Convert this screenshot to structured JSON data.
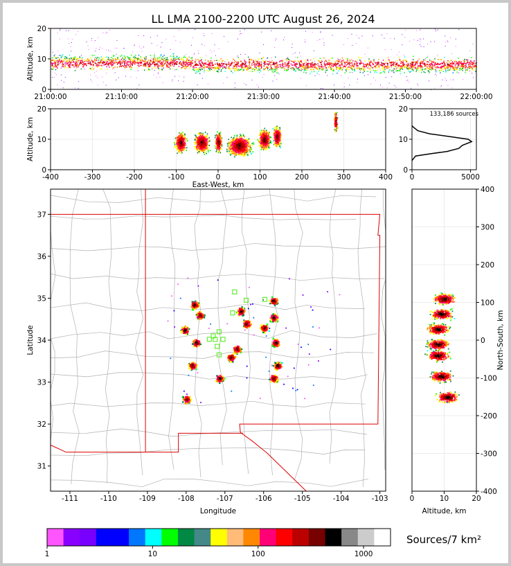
{
  "title": "LL LMA 2100-2200 UTC August 26, 2024",
  "source_count_label": "133,186 sources",
  "colorbar": {
    "label": "Sources/7 km²",
    "colors": [
      "#ff55ff",
      "#8800ff",
      "#7700ff",
      "#0000ff",
      "#0000ff",
      "#0077ff",
      "#00ffff",
      "#00ff00",
      "#008844",
      "#448888",
      "#ffff00",
      "#ffbb77",
      "#ff8800",
      "#ff0077",
      "#ff0000",
      "#bb0000",
      "#770000",
      "#000000",
      "#888888",
      "#cccccc",
      "#ffffff"
    ],
    "tick_labels": [
      "1",
      "10",
      "100",
      "1000"
    ],
    "tick_values": [
      1,
      10,
      100,
      1000
    ],
    "range": [
      1,
      1800
    ]
  },
  "chart_data": [
    {
      "id": "time_height",
      "type": "scatter",
      "xlabel": "",
      "ylabel": "Altitude, km",
      "x_tick_labels": [
        "21:00:00",
        "21:10:00",
        "21:20:00",
        "21:30:00",
        "21:40:00",
        "21:50:00",
        "22:00:00"
      ],
      "xlim_minutes": [
        0,
        60
      ],
      "ylim": [
        0,
        20
      ],
      "y_ticks": [
        0,
        10,
        20
      ],
      "description_points": {
        "band_center_km": [
          8,
          9,
          9,
          8,
          8,
          8,
          8,
          8,
          8
        ],
        "times_min": [
          0,
          8,
          15,
          22,
          30,
          38,
          45,
          52,
          60
        ]
      }
    },
    {
      "id": "ew_height",
      "type": "scatter",
      "xlabel": "East-West, km",
      "ylabel": "Altitude, km",
      "xlim": [
        -400,
        400
      ],
      "x_ticks": [
        -400,
        -300,
        -200,
        -100,
        0,
        100,
        200,
        300,
        400
      ],
      "ylim": [
        0,
        20
      ],
      "y_ticks": [
        0,
        10,
        20
      ],
      "clusters": [
        {
          "x": -90,
          "width": 35,
          "alt": 9
        },
        {
          "x": -40,
          "width": 45,
          "alt": 9
        },
        {
          "x": 0,
          "width": 20,
          "alt": 9
        },
        {
          "x": 50,
          "width": 70,
          "alt": 8
        },
        {
          "x": 110,
          "width": 35,
          "alt": 10
        },
        {
          "x": 140,
          "width": 25,
          "alt": 11
        },
        {
          "x": 280,
          "width": 10,
          "alt": 16
        }
      ]
    },
    {
      "id": "altitude_histogram",
      "type": "line",
      "xlabel": "",
      "ylabel": "",
      "xlim": [
        0,
        5500
      ],
      "x_ticks": [
        0,
        5000
      ],
      "ylim": [
        0,
        20
      ],
      "y_ticks": [
        0,
        10,
        20
      ],
      "profile": [
        [
          0,
          3
        ],
        [
          300,
          4.5
        ],
        [
          1500,
          5.2
        ],
        [
          3000,
          6
        ],
        [
          4000,
          7
        ],
        [
          4300,
          8
        ],
        [
          5100,
          9.2
        ],
        [
          4800,
          10
        ],
        [
          3000,
          11
        ],
        [
          1500,
          11.8
        ],
        [
          500,
          12.8
        ],
        [
          100,
          14
        ],
        [
          0,
          14.5
        ]
      ]
    },
    {
      "id": "plan_view",
      "type": "scatter",
      "xlabel": "Longitude",
      "ylabel": "Latitude",
      "xlim": [
        -111.5,
        -102.85
      ],
      "x_ticks": [
        -111,
        -110,
        -109,
        -108,
        -107,
        -106,
        -105,
        -104,
        -103
      ],
      "ylim": [
        30.4,
        37.6
      ],
      "y_ticks": [
        31,
        32,
        33,
        34,
        35,
        36,
        37
      ],
      "storms": [
        {
          "lon": -107.8,
          "lat": 34.85
        },
        {
          "lon": -107.65,
          "lat": 34.6
        },
        {
          "lon": -108.05,
          "lat": 34.25
        },
        {
          "lon": -107.75,
          "lat": 33.95
        },
        {
          "lon": -107.85,
          "lat": 33.4
        },
        {
          "lon": -107.15,
          "lat": 33.1
        },
        {
          "lon": -106.6,
          "lat": 34.7
        },
        {
          "lon": -106.45,
          "lat": 34.4
        },
        {
          "lon": -106.7,
          "lat": 33.8
        },
        {
          "lon": -106.85,
          "lat": 33.6
        },
        {
          "lon": -106.0,
          "lat": 34.3
        },
        {
          "lon": -105.75,
          "lat": 34.95
        },
        {
          "lon": -105.75,
          "lat": 34.55
        },
        {
          "lon": -105.7,
          "lat": 33.95
        },
        {
          "lon": -105.65,
          "lat": 33.4
        },
        {
          "lon": -105.75,
          "lat": 33.1
        },
        {
          "lon": -108.0,
          "lat": 32.6
        }
      ],
      "stations": [
        [
          -106.75,
          35.15
        ],
        [
          -106.45,
          34.95
        ],
        [
          -105.97,
          34.97
        ],
        [
          -106.8,
          34.65
        ],
        [
          -107.15,
          34.2
        ],
        [
          -107.3,
          34.1
        ],
        [
          -107.4,
          34.02
        ],
        [
          -107.25,
          34.02
        ],
        [
          -107.05,
          34.02
        ],
        [
          -107.2,
          33.85
        ],
        [
          -107.15,
          33.65
        ]
      ]
    },
    {
      "id": "ns_height",
      "type": "scatter",
      "xlabel": "Altitude, km",
      "ylabel": "North-South, km",
      "xlim": [
        0,
        20
      ],
      "x_ticks": [
        0,
        10,
        20
      ],
      "ylim": [
        -400,
        400
      ],
      "y_ticks": [
        -400,
        -300,
        -200,
        -100,
        0,
        100,
        200,
        300,
        400
      ],
      "clusters": [
        {
          "y": 110,
          "alt": 10
        },
        {
          "y": 70,
          "alt": 9
        },
        {
          "y": 30,
          "alt": 8
        },
        {
          "y": -10,
          "alt": 8
        },
        {
          "y": -40,
          "alt": 8
        },
        {
          "y": -95,
          "alt": 9
        },
        {
          "y": -150,
          "alt": 11
        }
      ]
    }
  ]
}
